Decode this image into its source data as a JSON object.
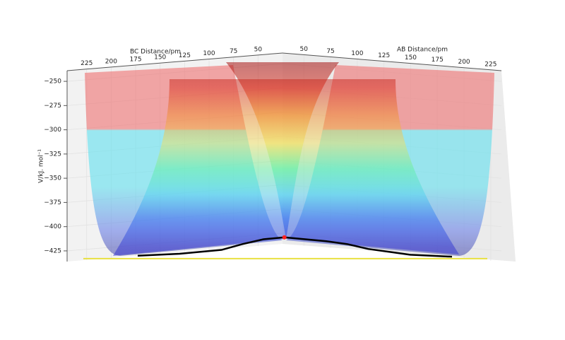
{
  "chart_data": {
    "type": "surface3d",
    "x_label": "BC Distance/pm",
    "y_label": "AB Distance/pm",
    "z_label": "V/kJ. mol⁻¹",
    "xlim": [
      25,
      245
    ],
    "xticks": [
      225,
      200,
      175,
      150,
      125,
      100,
      75,
      50
    ],
    "ylim": [
      30,
      235
    ],
    "yticks": [
      50,
      75,
      100,
      125,
      150,
      175,
      200,
      225
    ],
    "zlim": [
      -436,
      -239
    ],
    "zticks": [
      {
        "value": -250,
        "label": "−250"
      },
      {
        "value": -275,
        "label": "−275"
      },
      {
        "value": -300,
        "label": "−300"
      },
      {
        "value": -325,
        "label": "−325"
      },
      {
        "value": -350,
        "label": "−350"
      },
      {
        "value": -375,
        "label": "−375"
      },
      {
        "value": -400,
        "label": "−400"
      },
      {
        "value": -425,
        "label": "−425"
      }
    ],
    "grid": true,
    "path": {
      "color": "#000000",
      "values": [
        -430,
        -429,
        -428,
        -426,
        -424,
        -418,
        -413,
        -411,
        -413,
        -415,
        -418,
        -423,
        -426,
        -429,
        -430,
        -431
      ]
    },
    "saddle": {
      "color": "#ff2020",
      "value": -411
    },
    "floor": {
      "color": "#e8e040",
      "value": -433
    }
  }
}
